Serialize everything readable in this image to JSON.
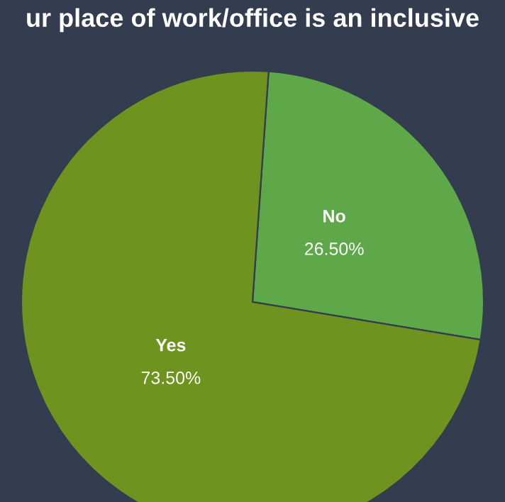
{
  "chart_data": {
    "type": "pie",
    "title": "ur place of work/office is an inclusive",
    "categories": [
      "Yes",
      "No"
    ],
    "values": [
      73.5,
      26.5
    ],
    "colors": [
      "#6e941f",
      "#5fa84a"
    ],
    "value_labels": [
      "73.50%",
      "26.50%"
    ]
  }
}
